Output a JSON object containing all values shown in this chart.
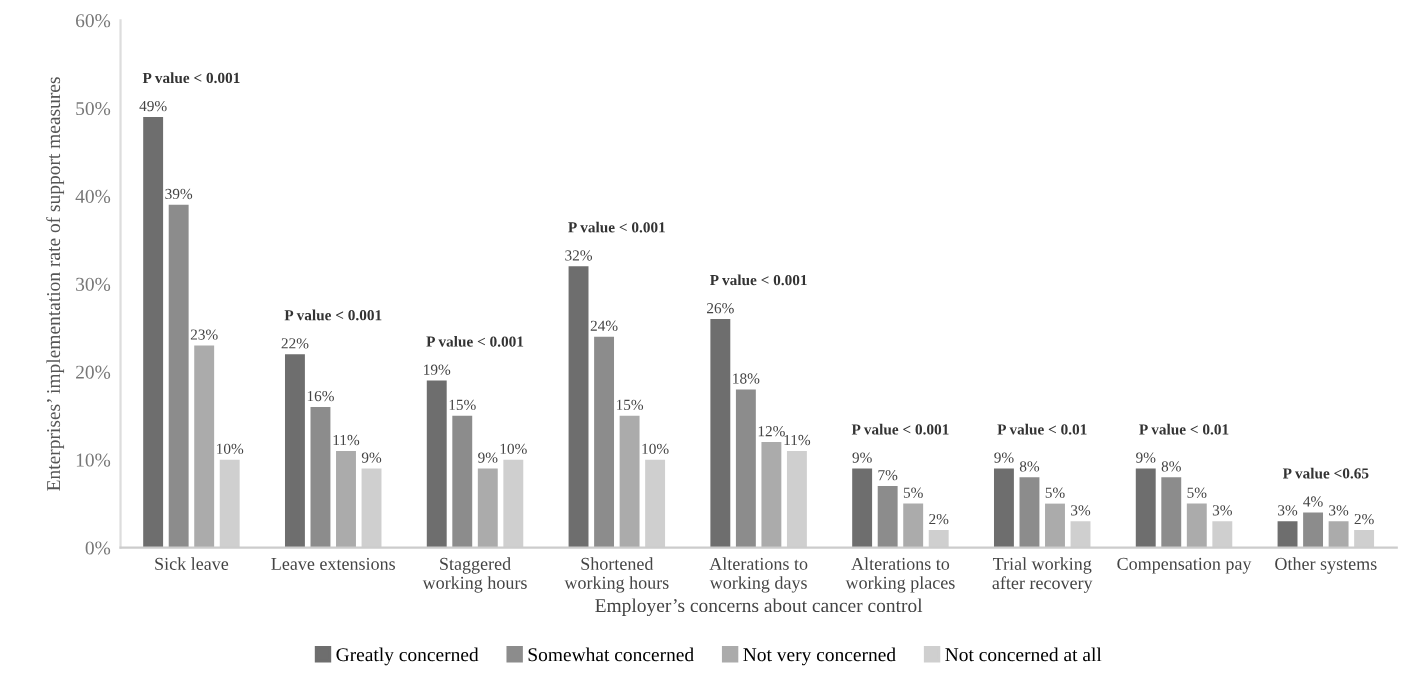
{
  "chart_data": {
    "type": "bar",
    "xlabel": "Employer’s concerns about cancer control",
    "ylabel": "Enterprises’ implementation rate of support measures",
    "categories": [
      "Sick leave",
      "Leave extensions",
      "Staggered working hours",
      "Shortened working hours",
      "Alterations to working days",
      "Alterations to working places",
      "Trial working after recovery",
      "Compensation pay",
      "Other systems"
    ],
    "series": [
      {
        "name": "Greatly concerned",
        "color": "#6e6e6e",
        "values": [
          49,
          22,
          19,
          32,
          26,
          9,
          9,
          9,
          3
        ],
        "value_labels": [
          "49%",
          "22%",
          "19%",
          "32%",
          "26%",
          "9%",
          "9%",
          "9%",
          "3%"
        ]
      },
      {
        "name": "Somewhat concerned",
        "color": "#8c8c8c",
        "values": [
          39,
          16,
          15,
          24,
          18,
          7,
          8,
          8,
          4
        ],
        "value_labels": [
          "39%",
          "16%",
          "15%",
          "24%",
          "18%",
          "7%",
          "8%",
          "8%",
          "4%"
        ]
      },
      {
        "name": "Not very concerned",
        "color": "#ababab",
        "values": [
          23,
          11,
          9,
          15,
          12,
          5,
          5,
          5,
          3
        ],
        "value_labels": [
          "23%",
          "11%",
          "9%",
          "15%",
          "12%",
          "5%",
          "5%",
          "5%",
          "3%"
        ]
      },
      {
        "name": "Not concerned at all",
        "color": "#cfcfcf",
        "values": [
          10,
          9,
          10,
          10,
          11,
          2,
          3,
          3,
          2
        ],
        "value_labels": [
          "10%",
          "9%",
          "10%",
          "10%",
          "11%",
          "2%",
          "3%",
          "3%",
          "2%"
        ]
      }
    ],
    "ylim": [
      0,
      60
    ],
    "yticks": [
      {
        "value": 0,
        "label": "0%"
      },
      {
        "value": 10,
        "label": "10%"
      },
      {
        "value": 20,
        "label": "20%"
      },
      {
        "value": 30,
        "label": "30%"
      },
      {
        "value": 40,
        "label": "40%"
      },
      {
        "value": 50,
        "label": "50%"
      },
      {
        "value": 60,
        "label": "60%"
      }
    ],
    "grid": false,
    "legend": "bottom",
    "annotations": [
      "P value < 0.001",
      "P value < 0.001",
      "P value < 0.001",
      "P value < 0.001",
      "P value < 0.001",
      "P value < 0.001",
      "P value < 0.01",
      "P value < 0.01",
      "P value <0.65"
    ]
  }
}
